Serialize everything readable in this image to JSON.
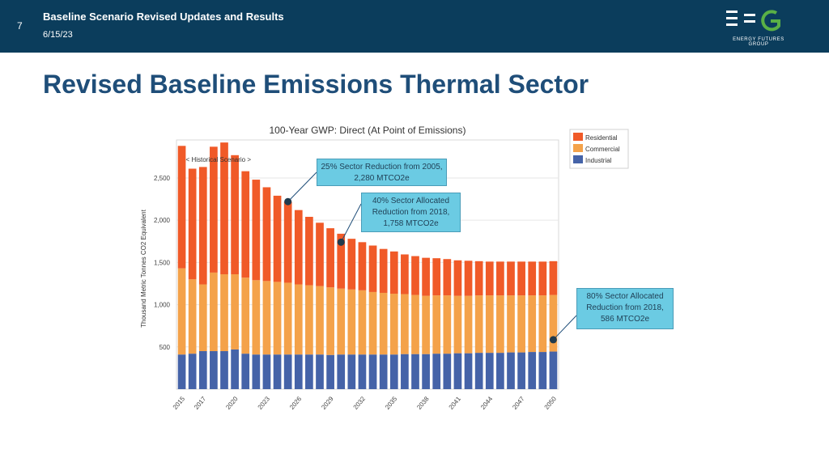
{
  "header": {
    "slide_number": "7",
    "title": "Baseline Scenario Revised Updates and Results",
    "date": "6/15/23",
    "logo_text": "ENERGY FUTURES GROUP"
  },
  "page_title": "Revised Baseline Emissions Thermal Sector",
  "colors": {
    "header_bg": "#0b3d5c",
    "title": "#1f4e79",
    "residential": "#f05a28",
    "commercial": "#f4a24a",
    "industrial": "#4563a8",
    "callout": "#6bcbe3",
    "logo_green": "#5ab046"
  },
  "callouts": {
    "c1": "25% Sector Reduction from 2005, 2,280 MTCO2e",
    "c2": "40% Sector Allocated Reduction from 2018, 1,758 MTCO2e",
    "c3": "80% Sector Allocated Reduction from 2018, 586 MTCO2e"
  },
  "chart_data": {
    "type": "bar",
    "stacked": true,
    "title": "100-Year GWP: Direct (At Point of Emissions)",
    "xlabel": "",
    "ylabel": "Thousand Metric Tonnes CO2 Equivalent",
    "ylim": [
      0,
      2950
    ],
    "yticks": [
      500,
      1000,
      1500,
      2000,
      2500
    ],
    "ytick_labels": [
      "500",
      "1,000",
      "1,500",
      "2,000",
      "2,500"
    ],
    "categories": [
      "2015",
      "2016",
      "2017",
      "2018",
      "2019",
      "2020",
      "2021",
      "2022",
      "2023",
      "2024",
      "2025",
      "2026",
      "2027",
      "2028",
      "2029",
      "2030",
      "2031",
      "2032",
      "2033",
      "2034",
      "2035",
      "2036",
      "2037",
      "2038",
      "2039",
      "2040",
      "2041",
      "2042",
      "2043",
      "2044",
      "2045",
      "2046",
      "2047",
      "2048",
      "2049",
      "2050"
    ],
    "xtick_labels": [
      "2015",
      "2017",
      "2020",
      "2023",
      "2026",
      "2029",
      "2032",
      "2035",
      "2038",
      "2041",
      "2044",
      "2047",
      "2050"
    ],
    "annotation": "< Historical   Scenario >",
    "legend": [
      "Residential",
      "Commercial",
      "Industrial"
    ],
    "legend_position": "top-right",
    "series": [
      {
        "name": "Industrial",
        "values": [
          410,
          420,
          450,
          450,
          450,
          470,
          420,
          410,
          410,
          410,
          410,
          410,
          410,
          410,
          405,
          410,
          410,
          410,
          410,
          410,
          410,
          415,
          415,
          415,
          420,
          420,
          425,
          425,
          430,
          430,
          430,
          435,
          435,
          440,
          440,
          445
        ]
      },
      {
        "name": "Commercial",
        "values": [
          1020,
          880,
          790,
          930,
          910,
          890,
          900,
          880,
          870,
          860,
          850,
          830,
          820,
          810,
          800,
          780,
          770,
          760,
          740,
          730,
          720,
          710,
          700,
          690,
          690,
          690,
          680,
          680,
          680,
          680,
          680,
          675,
          675,
          670,
          670,
          670
        ]
      },
      {
        "name": "Residential",
        "values": [
          1450,
          1310,
          1390,
          1490,
          1560,
          1410,
          1260,
          1190,
          1110,
          1020,
          960,
          880,
          810,
          750,
          700,
          650,
          600,
          570,
          550,
          520,
          500,
          470,
          460,
          450,
          440,
          430,
          420,
          415,
          405,
          400,
          400,
          400,
          400,
          400,
          400,
          400
        ]
      }
    ],
    "markers": [
      {
        "year": "2025",
        "value": 2220
      },
      {
        "year": "2030",
        "value": 1740
      },
      {
        "year": "2050",
        "value": 585
      }
    ]
  }
}
